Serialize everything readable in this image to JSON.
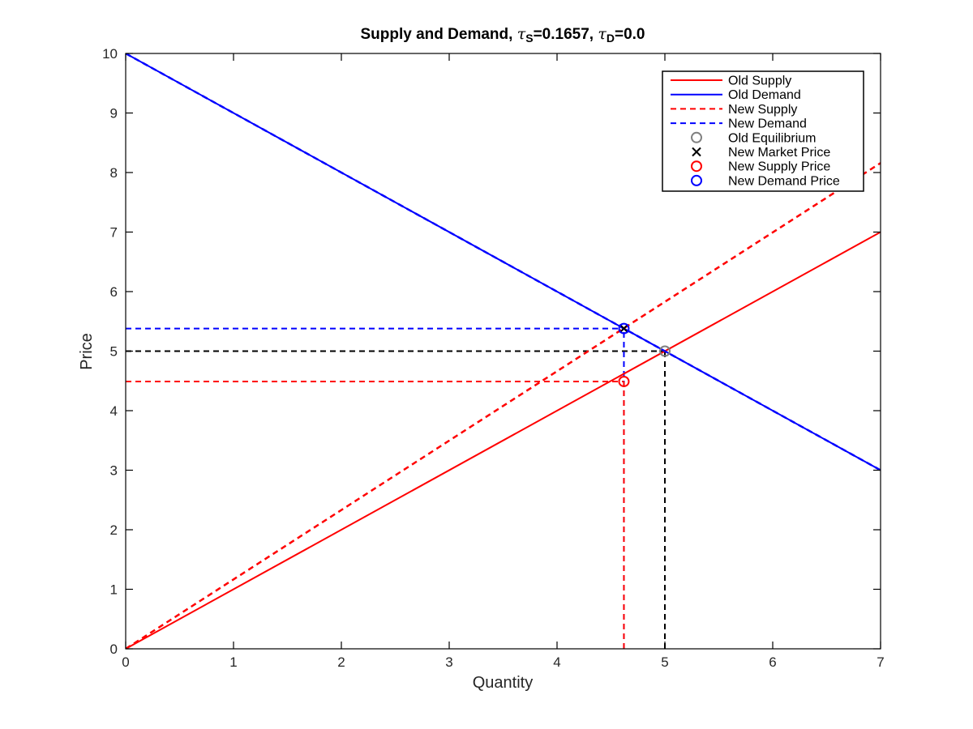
{
  "chart_data": {
    "type": "line",
    "title": {
      "prefix": "Supply and Demand, ",
      "tau_s_symbol": "τ",
      "tau_s_sub": "S",
      "tau_s_value": "=0.1657, ",
      "tau_d_symbol": "τ",
      "tau_d_sub": "D",
      "tau_d_value": "=0.0"
    },
    "xlabel": "Quantity",
    "ylabel": "Price",
    "xlim": [
      0,
      7
    ],
    "ylim": [
      0,
      10
    ],
    "xticks": [
      0,
      1,
      2,
      3,
      4,
      5,
      6,
      7
    ],
    "yticks": [
      0,
      1,
      2,
      3,
      4,
      5,
      6,
      7,
      8,
      9,
      10
    ],
    "grid": false,
    "legend_position": "top-right",
    "series": [
      {
        "name": "Old Supply",
        "color": "#ff0000",
        "dash": "solid",
        "x": [
          0,
          7
        ],
        "y": [
          0,
          7
        ]
      },
      {
        "name": "Old Demand",
        "color": "#0000ff",
        "dash": "solid",
        "x": [
          0,
          7
        ],
        "y": [
          10,
          3
        ]
      },
      {
        "name": "New Supply",
        "color": "#ff0000",
        "dash": "dashed",
        "x": [
          0,
          7
        ],
        "y": [
          0,
          8.16
        ]
      },
      {
        "name": "New Demand",
        "color": "#0000ff",
        "dash": "dashed",
        "x": [
          0,
          7
        ],
        "y": [
          10,
          3
        ]
      }
    ],
    "points": [
      {
        "name": "Old Equilibrium",
        "marker": "circle",
        "color": "#808080",
        "x": 5.0,
        "y": 5.0
      },
      {
        "name": "New Market Price",
        "marker": "x",
        "color": "#000000",
        "x": 4.62,
        "y": 5.38
      },
      {
        "name": "New Supply Price",
        "marker": "circle",
        "color": "#ff0000",
        "x": 4.62,
        "y": 4.49
      },
      {
        "name": "New Demand Price",
        "marker": "circle",
        "color": "#0000ff",
        "x": 4.62,
        "y": 5.38
      }
    ],
    "guides": [
      {
        "color": "#000000",
        "x": 5.0,
        "y": 5.0
      },
      {
        "color": "#0000ff",
        "x": 4.62,
        "y": 5.38
      },
      {
        "color": "#ff0000",
        "x": 4.62,
        "y": 4.49
      }
    ]
  }
}
